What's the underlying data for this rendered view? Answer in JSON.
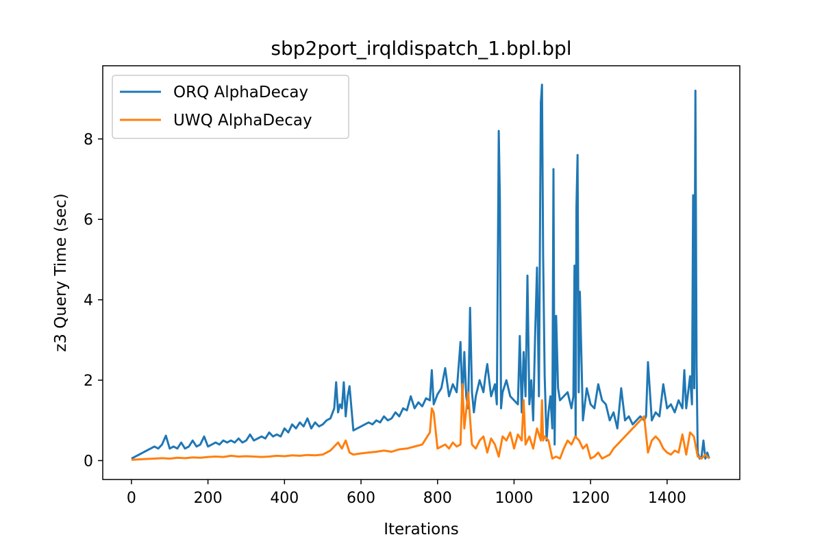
{
  "chart_data": {
    "type": "line",
    "title": "sbp2port_irqldispatch_1.bpl.bpl",
    "xlabel": "Iterations",
    "ylabel": "z3 Query Time (sec)",
    "xlim": [
      -75,
      1590
    ],
    "ylim": [
      -0.47,
      9.82
    ],
    "xticks": [
      0,
      200,
      400,
      600,
      800,
      1000,
      1200,
      1400
    ],
    "yticks": [
      0,
      2,
      4,
      6,
      8
    ],
    "grid": false,
    "legend_position": "top-left",
    "series": [
      {
        "name": "ORQ AlphaDecay",
        "color": "#1f77b4",
        "x": [
          0,
          10,
          20,
          30,
          40,
          50,
          60,
          70,
          80,
          90,
          100,
          110,
          120,
          130,
          140,
          150,
          160,
          170,
          180,
          190,
          200,
          210,
          220,
          230,
          240,
          250,
          260,
          270,
          280,
          290,
          300,
          310,
          320,
          330,
          340,
          350,
          360,
          370,
          380,
          390,
          400,
          410,
          420,
          430,
          440,
          450,
          460,
          470,
          480,
          490,
          500,
          510,
          520,
          530,
          535,
          540,
          545,
          550,
          555,
          560,
          565,
          570,
          580,
          590,
          600,
          610,
          620,
          630,
          640,
          650,
          660,
          670,
          680,
          690,
          700,
          710,
          720,
          730,
          740,
          750,
          760,
          770,
          780,
          785,
          790,
          800,
          810,
          820,
          830,
          840,
          850,
          860,
          865,
          870,
          875,
          880,
          885,
          890,
          895,
          900,
          910,
          920,
          925,
          930,
          940,
          950,
          955,
          960,
          963,
          966,
          970,
          980,
          990,
          1000,
          1010,
          1015,
          1020,
          1025,
          1030,
          1035,
          1040,
          1045,
          1050,
          1055,
          1060,
          1065,
          1070,
          1073,
          1076,
          1080,
          1085,
          1090,
          1095,
          1100,
          1103,
          1106,
          1110,
          1115,
          1120,
          1130,
          1140,
          1150,
          1155,
          1158,
          1161,
          1163,
          1166,
          1169,
          1172,
          1180,
          1190,
          1200,
          1210,
          1220,
          1230,
          1240,
          1250,
          1260,
          1270,
          1280,
          1290,
          1300,
          1310,
          1320,
          1330,
          1340,
          1345,
          1350,
          1360,
          1370,
          1380,
          1390,
          1400,
          1410,
          1420,
          1430,
          1440,
          1445,
          1450,
          1460,
          1465,
          1468,
          1471,
          1474,
          1477,
          1480,
          1485,
          1490,
          1495,
          1500,
          1505,
          1510
        ],
        "values": [
          0.05,
          0.1,
          0.15,
          0.2,
          0.25,
          0.3,
          0.35,
          0.3,
          0.4,
          0.62,
          0.3,
          0.35,
          0.3,
          0.45,
          0.3,
          0.35,
          0.5,
          0.35,
          0.4,
          0.6,
          0.35,
          0.4,
          0.45,
          0.4,
          0.5,
          0.45,
          0.5,
          0.45,
          0.55,
          0.45,
          0.5,
          0.65,
          0.5,
          0.55,
          0.6,
          0.55,
          0.7,
          0.6,
          0.65,
          0.6,
          0.8,
          0.7,
          0.9,
          0.8,
          0.95,
          0.85,
          1.05,
          0.8,
          0.95,
          0.85,
          0.9,
          1.0,
          1.05,
          1.3,
          1.95,
          1.2,
          1.4,
          1.3,
          1.95,
          1.1,
          1.6,
          1.85,
          0.75,
          0.8,
          0.85,
          0.9,
          0.95,
          0.9,
          1.0,
          0.95,
          1.1,
          1.0,
          1.05,
          1.2,
          1.1,
          1.3,
          1.25,
          1.6,
          1.3,
          1.45,
          1.35,
          1.55,
          1.5,
          2.25,
          1.4,
          1.65,
          1.8,
          2.3,
          1.6,
          1.9,
          1.7,
          2.95,
          1.5,
          2.7,
          1.6,
          1.3,
          3.8,
          1.7,
          1.2,
          1.6,
          2.0,
          1.7,
          2.1,
          2.4,
          1.6,
          1.9,
          1.4,
          8.2,
          6.5,
          1.3,
          1.7,
          2.0,
          1.6,
          1.5,
          1.4,
          3.1,
          1.2,
          2.7,
          1.6,
          4.6,
          1.4,
          2.0,
          1.0,
          3.1,
          4.8,
          1.6,
          8.9,
          9.35,
          5.1,
          2.1,
          0.5,
          1.2,
          1.6,
          0.8,
          7.25,
          0.4,
          3.6,
          1.8,
          1.5,
          1.6,
          1.7,
          1.3,
          1.6,
          4.85,
          0.6,
          6.3,
          7.6,
          1.7,
          4.2,
          1.0,
          1.8,
          1.4,
          1.3,
          1.9,
          1.5,
          1.4,
          1.0,
          1.2,
          0.8,
          1.8,
          1.0,
          1.1,
          0.9,
          1.0,
          1.1,
          1.0,
          1.1,
          2.45,
          1.0,
          1.2,
          1.1,
          1.9,
          1.3,
          1.4,
          1.2,
          1.5,
          1.3,
          2.25,
          1.3,
          2.1,
          1.4,
          6.6,
          1.8,
          9.2,
          2.4,
          0.2,
          0.05,
          0.1,
          0.5,
          0.05,
          0.2,
          0.05
        ]
      },
      {
        "name": "UWQ AlphaDecay",
        "color": "#ff7f0e",
        "x": [
          0,
          20,
          40,
          60,
          80,
          100,
          120,
          140,
          160,
          180,
          200,
          220,
          240,
          260,
          280,
          300,
          320,
          340,
          360,
          380,
          400,
          420,
          440,
          460,
          480,
          500,
          520,
          530,
          540,
          550,
          560,
          570,
          580,
          600,
          620,
          640,
          660,
          680,
          700,
          720,
          740,
          760,
          780,
          785,
          790,
          800,
          810,
          820,
          830,
          840,
          850,
          860,
          865,
          870,
          880,
          890,
          900,
          910,
          920,
          930,
          940,
          950,
          960,
          970,
          980,
          990,
          1000,
          1010,
          1020,
          1025,
          1030,
          1040,
          1050,
          1060,
          1070,
          1073,
          1076,
          1080,
          1090,
          1100,
          1110,
          1120,
          1130,
          1140,
          1150,
          1160,
          1170,
          1180,
          1190,
          1200,
          1210,
          1220,
          1230,
          1240,
          1250,
          1260,
          1270,
          1280,
          1290,
          1300,
          1310,
          1320,
          1330,
          1340,
          1350,
          1360,
          1370,
          1380,
          1390,
          1400,
          1410,
          1420,
          1430,
          1440,
          1450,
          1460,
          1470,
          1480,
          1490,
          1500,
          1510
        ],
        "values": [
          0.02,
          0.03,
          0.04,
          0.05,
          0.06,
          0.05,
          0.07,
          0.06,
          0.08,
          0.07,
          0.09,
          0.1,
          0.09,
          0.12,
          0.1,
          0.11,
          0.1,
          0.09,
          0.1,
          0.12,
          0.11,
          0.13,
          0.12,
          0.14,
          0.13,
          0.15,
          0.25,
          0.35,
          0.45,
          0.3,
          0.5,
          0.2,
          0.15,
          0.18,
          0.2,
          0.22,
          0.25,
          0.22,
          0.28,
          0.3,
          0.35,
          0.4,
          0.7,
          1.3,
          1.2,
          0.3,
          0.35,
          0.4,
          0.3,
          0.45,
          0.35,
          0.4,
          1.9,
          0.8,
          1.7,
          0.4,
          0.3,
          0.5,
          0.6,
          0.2,
          0.55,
          0.4,
          0.1,
          0.6,
          0.5,
          0.7,
          0.3,
          0.65,
          0.5,
          1.5,
          0.4,
          0.6,
          0.3,
          0.8,
          0.5,
          1.5,
          0.5,
          0.6,
          0.5,
          0.05,
          0.1,
          0.05,
          0.3,
          0.5,
          0.4,
          0.6,
          0.5,
          0.3,
          0.4,
          0.05,
          0.1,
          0.2,
          0.05,
          0.1,
          0.15,
          0.3,
          0.4,
          0.5,
          0.6,
          0.7,
          0.8,
          0.9,
          1.0,
          1.1,
          0.2,
          0.5,
          0.6,
          0.5,
          0.3,
          0.2,
          0.15,
          0.25,
          0.2,
          0.65,
          0.15,
          0.7,
          0.6,
          0.1,
          0.05,
          0.15,
          0.05
        ]
      }
    ]
  }
}
